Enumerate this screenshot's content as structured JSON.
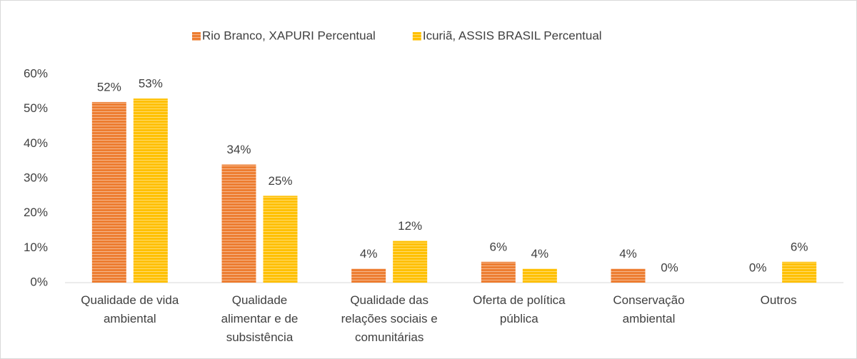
{
  "chart_data": {
    "type": "bar",
    "categories": [
      "Qualidade de vida ambiental",
      "Qualidade alimentar e de subsistência",
      "Qualidade das relações sociais e comunitárias",
      "Oferta de política pública",
      "Conservação ambiental",
      "Outros"
    ],
    "series": [
      {
        "name": "Rio Branco, XAPURI Percentual",
        "color": "#ed7d31",
        "values": [
          52,
          34,
          4,
          6,
          4,
          0
        ],
        "value_labels": [
          "52%",
          "34%",
          "4%",
          "6%",
          "4%",
          "0%"
        ]
      },
      {
        "name": "Icuriã, ASSIS BRASIL Percentual",
        "color": "#ffc000",
        "values": [
          53,
          25,
          12,
          4,
          0,
          6
        ],
        "value_labels": [
          "53%",
          "25%",
          "12%",
          "4%",
          "0%",
          "6%"
        ]
      }
    ],
    "ylim": [
      0,
      60
    ],
    "yticks": [
      {
        "value": 0,
        "label": "0%"
      },
      {
        "value": 10,
        "label": "10%"
      },
      {
        "value": 20,
        "label": "20%"
      },
      {
        "value": 30,
        "label": "30%"
      },
      {
        "value": 40,
        "label": "40%"
      },
      {
        "value": 50,
        "label": "50%"
      },
      {
        "value": 60,
        "label": "60%"
      }
    ],
    "grid": false,
    "legend": "top"
  }
}
